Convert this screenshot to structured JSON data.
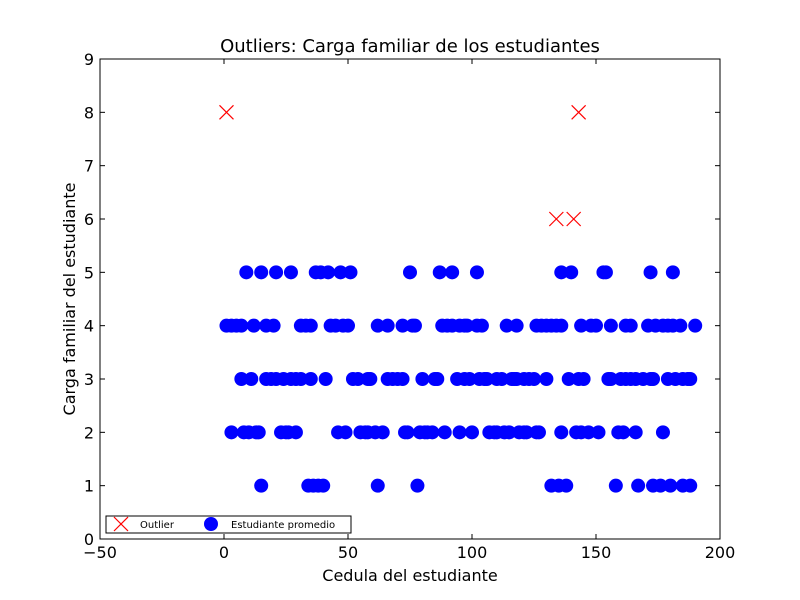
{
  "chart_data": {
    "type": "scatter",
    "title": "Outliers: Carga familiar de los estudiantes",
    "xlabel": "Cedula del estudiante",
    "ylabel": "Carga familiar del estudiante",
    "xlim": [
      -50,
      200
    ],
    "ylim": [
      0,
      9
    ],
    "xticks": [
      "−50",
      "0",
      "50",
      "100",
      "150",
      "200"
    ],
    "yticks": [
      "0",
      "1",
      "2",
      "3",
      "4",
      "5",
      "6",
      "7",
      "8",
      "9"
    ],
    "grid": false,
    "legend_position": "bottom-left",
    "series": [
      {
        "name": "Outlier",
        "marker": "x",
        "color": "#ff0000",
        "points": [
          [
            1,
            8
          ],
          [
            134,
            6
          ],
          [
            141,
            6
          ],
          [
            143,
            8
          ]
        ]
      },
      {
        "name": "Estudiante promedio",
        "marker": "circle",
        "color": "#0000ff",
        "points": [
          [
            15,
            1
          ],
          [
            34,
            1
          ],
          [
            36,
            1
          ],
          [
            38,
            1
          ],
          [
            40,
            1
          ],
          [
            62,
            1
          ],
          [
            78,
            1
          ],
          [
            132,
            1
          ],
          [
            135,
            1
          ],
          [
            138,
            1
          ],
          [
            158,
            1
          ],
          [
            167,
            1
          ],
          [
            173,
            1
          ],
          [
            176,
            1
          ],
          [
            180,
            1
          ],
          [
            185,
            1
          ],
          [
            188,
            1
          ],
          [
            3,
            2
          ],
          [
            8,
            2
          ],
          [
            10,
            2
          ],
          [
            13,
            2
          ],
          [
            14,
            2
          ],
          [
            23,
            2
          ],
          [
            25,
            2
          ],
          [
            26,
            2
          ],
          [
            29,
            2
          ],
          [
            46,
            2
          ],
          [
            49,
            2
          ],
          [
            55,
            2
          ],
          [
            57,
            2
          ],
          [
            58,
            2
          ],
          [
            61,
            2
          ],
          [
            64,
            2
          ],
          [
            73,
            2
          ],
          [
            74,
            2
          ],
          [
            79,
            2
          ],
          [
            81,
            2
          ],
          [
            82,
            2
          ],
          [
            84,
            2
          ],
          [
            89,
            2
          ],
          [
            95,
            2
          ],
          [
            100,
            2
          ],
          [
            107,
            2
          ],
          [
            109,
            2
          ],
          [
            110,
            2
          ],
          [
            113,
            2
          ],
          [
            115,
            2
          ],
          [
            119,
            2
          ],
          [
            121,
            2
          ],
          [
            122,
            2
          ],
          [
            126,
            2
          ],
          [
            127,
            2
          ],
          [
            136,
            2
          ],
          [
            142,
            2
          ],
          [
            144,
            2
          ],
          [
            147,
            2
          ],
          [
            151,
            2
          ],
          [
            159,
            2
          ],
          [
            161,
            2
          ],
          [
            166,
            2
          ],
          [
            177,
            2
          ],
          [
            7,
            3
          ],
          [
            11,
            3
          ],
          [
            17,
            3
          ],
          [
            19,
            3
          ],
          [
            21,
            3
          ],
          [
            24,
            3
          ],
          [
            27,
            3
          ],
          [
            29,
            3
          ],
          [
            31,
            3
          ],
          [
            35,
            3
          ],
          [
            41,
            3
          ],
          [
            52,
            3
          ],
          [
            54,
            3
          ],
          [
            58,
            3
          ],
          [
            59,
            3
          ],
          [
            66,
            3
          ],
          [
            68,
            3
          ],
          [
            70,
            3
          ],
          [
            72,
            3
          ],
          [
            80,
            3
          ],
          [
            85,
            3
          ],
          [
            86,
            3
          ],
          [
            94,
            3
          ],
          [
            97,
            3
          ],
          [
            99,
            3
          ],
          [
            103,
            3
          ],
          [
            105,
            3
          ],
          [
            106,
            3
          ],
          [
            110,
            3
          ],
          [
            112,
            3
          ],
          [
            116,
            3
          ],
          [
            117,
            3
          ],
          [
            118,
            3
          ],
          [
            121,
            3
          ],
          [
            123,
            3
          ],
          [
            125,
            3
          ],
          [
            130,
            3
          ],
          [
            139,
            3
          ],
          [
            143,
            3
          ],
          [
            145,
            3
          ],
          [
            155,
            3
          ],
          [
            156,
            3
          ],
          [
            160,
            3
          ],
          [
            162,
            3
          ],
          [
            164,
            3
          ],
          [
            166,
            3
          ],
          [
            169,
            3
          ],
          [
            172,
            3
          ],
          [
            173,
            3
          ],
          [
            179,
            3
          ],
          [
            182,
            3
          ],
          [
            185,
            3
          ],
          [
            187,
            3
          ],
          [
            188,
            3
          ],
          [
            1,
            4
          ],
          [
            3,
            4
          ],
          [
            5,
            4
          ],
          [
            7,
            4
          ],
          [
            12,
            4
          ],
          [
            17,
            4
          ],
          [
            20,
            4
          ],
          [
            31,
            4
          ],
          [
            33,
            4
          ],
          [
            35,
            4
          ],
          [
            43,
            4
          ],
          [
            45,
            4
          ],
          [
            48,
            4
          ],
          [
            50,
            4
          ],
          [
            62,
            4
          ],
          [
            66,
            4
          ],
          [
            72,
            4
          ],
          [
            76,
            4
          ],
          [
            77,
            4
          ],
          [
            88,
            4
          ],
          [
            90,
            4
          ],
          [
            92,
            4
          ],
          [
            95,
            4
          ],
          [
            97,
            4
          ],
          [
            98,
            4
          ],
          [
            102,
            4
          ],
          [
            104,
            4
          ],
          [
            114,
            4
          ],
          [
            118,
            4
          ],
          [
            126,
            4
          ],
          [
            128,
            4
          ],
          [
            130,
            4
          ],
          [
            132,
            4
          ],
          [
            134,
            4
          ],
          [
            136,
            4
          ],
          [
            144,
            4
          ],
          [
            148,
            4
          ],
          [
            150,
            4
          ],
          [
            156,
            4
          ],
          [
            162,
            4
          ],
          [
            164,
            4
          ],
          [
            171,
            4
          ],
          [
            174,
            4
          ],
          [
            177,
            4
          ],
          [
            179,
            4
          ],
          [
            181,
            4
          ],
          [
            184,
            4
          ],
          [
            190,
            4
          ],
          [
            9,
            5
          ],
          [
            15,
            5
          ],
          [
            21,
            5
          ],
          [
            27,
            5
          ],
          [
            37,
            5
          ],
          [
            39,
            5
          ],
          [
            42,
            5
          ],
          [
            47,
            5
          ],
          [
            51,
            5
          ],
          [
            75,
            5
          ],
          [
            87,
            5
          ],
          [
            92,
            5
          ],
          [
            102,
            5
          ],
          [
            136,
            5
          ],
          [
            140,
            5
          ],
          [
            153,
            5
          ],
          [
            154,
            5
          ],
          [
            172,
            5
          ],
          [
            181,
            5
          ]
        ]
      }
    ]
  }
}
